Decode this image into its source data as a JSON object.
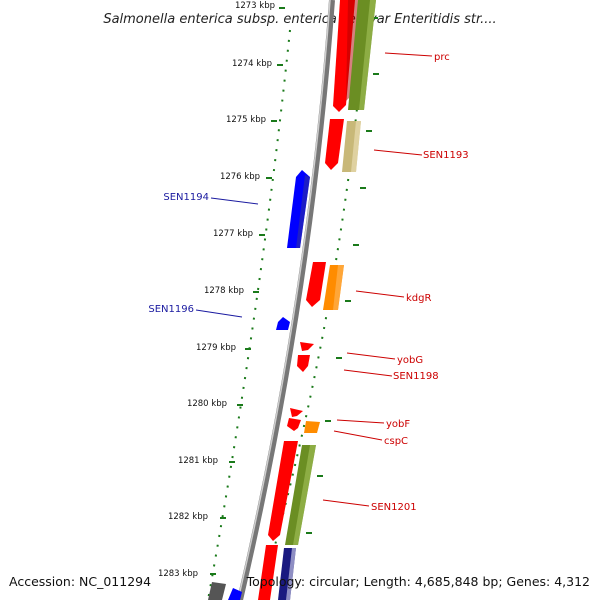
{
  "title": "Salmonella enterica subsp. enterica serovar Enteritidis str....",
  "footer": {
    "accession": "Accession: NC_011294",
    "topology": "Topology: circular; Length: 4,685,848 bp; Genes: 4,312"
  },
  "colors": {
    "forward_cds": "#ff0000",
    "reverse_cds": "#0000ff",
    "cog_green": "#6b8e23",
    "cog_khaki": "#c8b878",
    "cog_orange": "#ff8c00",
    "cog_navy": "#1a1a80",
    "backbone": "#888888",
    "ticks": "#1a7a1a",
    "label_forward": "#cc0000",
    "label_reverse": "#1a1aa0"
  },
  "ticks": [
    "1273 kbp",
    "1274 kbp",
    "1275 kbp",
    "1276 kbp",
    "1277 kbp",
    "1278 kbp",
    "1279 kbp",
    "1280 kbp",
    "1281 kbp",
    "1282 kbp",
    "1283 kbp"
  ],
  "genes": {
    "prc": "prc",
    "sen1193": "SEN1193",
    "sen1194": "SEN1194",
    "kdgr": "kdgR",
    "sen1196": "SEN1196",
    "yobg": "yobG",
    "sen1198": "SEN1198",
    "yobf": "yobF",
    "cspc": "cspC",
    "sen1201": "SEN1201"
  }
}
